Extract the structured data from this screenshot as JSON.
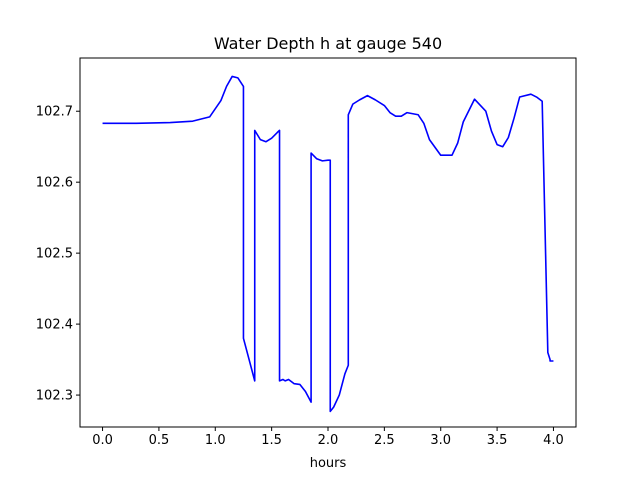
{
  "chart_data": {
    "type": "line",
    "title": "Water Depth h at gauge 540",
    "xlabel": "hours",
    "ylabel": "",
    "xlim": [
      -0.2,
      4.2
    ],
    "ylim": [
      102.255,
      102.775
    ],
    "xticks": [
      0.0,
      0.5,
      1.0,
      1.5,
      2.0,
      2.5,
      3.0,
      3.5,
      4.0
    ],
    "xtick_labels": [
      "0.0",
      "0.5",
      "1.0",
      "1.5",
      "2.0",
      "2.5",
      "3.0",
      "3.5",
      "4.0"
    ],
    "yticks": [
      102.3,
      102.4,
      102.5,
      102.6,
      102.7
    ],
    "ytick_labels": [
      "102.3",
      "102.4",
      "102.5",
      "102.6",
      "102.7"
    ],
    "grid": false,
    "series": [
      {
        "color": "#0000ff",
        "x": [
          0.0,
          0.3,
          0.6,
          0.8,
          0.95,
          1.05,
          1.1,
          1.15,
          1.2,
          1.25,
          1.25,
          1.3,
          1.35,
          1.35,
          1.4,
          1.45,
          1.5,
          1.55,
          1.57,
          1.57,
          1.6,
          1.62,
          1.65,
          1.7,
          1.75,
          1.8,
          1.85,
          1.85,
          1.9,
          1.95,
          2.0,
          2.02,
          2.02,
          2.05,
          2.1,
          2.15,
          2.18,
          2.18,
          2.22,
          2.28,
          2.35,
          2.42,
          2.5,
          2.55,
          2.6,
          2.65,
          2.7,
          2.8,
          2.85,
          2.9,
          3.0,
          3.1,
          3.15,
          3.2,
          3.3,
          3.4,
          3.45,
          3.5,
          3.55,
          3.6,
          3.65,
          3.7,
          3.8,
          3.85,
          3.9,
          3.95,
          3.97,
          3.97,
          4.0
        ],
        "y": [
          102.683,
          102.683,
          102.684,
          102.686,
          102.692,
          102.715,
          102.735,
          102.749,
          102.747,
          102.735,
          102.38,
          102.35,
          102.32,
          102.673,
          102.66,
          102.657,
          102.662,
          102.67,
          102.673,
          102.32,
          102.322,
          102.32,
          102.322,
          102.316,
          102.315,
          102.305,
          102.29,
          102.641,
          102.633,
          102.63,
          102.631,
          102.631,
          102.277,
          102.283,
          102.3,
          102.33,
          102.342,
          102.695,
          102.71,
          102.716,
          102.722,
          102.716,
          102.708,
          102.698,
          102.693,
          102.693,
          102.698,
          102.695,
          102.683,
          102.66,
          102.638,
          102.638,
          102.655,
          102.685,
          102.717,
          102.7,
          102.672,
          102.653,
          102.65,
          102.663,
          102.69,
          102.72,
          102.724,
          102.72,
          102.714,
          102.36,
          102.35,
          102.348,
          102.348
        ]
      }
    ]
  }
}
